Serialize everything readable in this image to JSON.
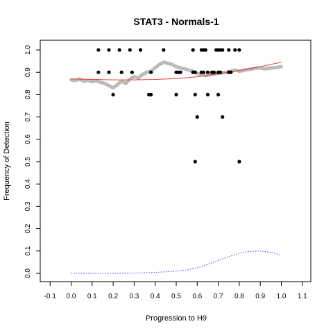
{
  "chart_data": {
    "type": "scatter",
    "title": "STAT3 - Normals-1",
    "xlabel": "Progression to H9",
    "ylabel": "Frequency of Detection",
    "xlim": [
      -0.1,
      1.1
    ],
    "ylim": [
      0,
      1.0
    ],
    "grid": false,
    "legend": "none",
    "x_ticks": [
      "-0.1",
      "0.0",
      "0.1",
      "0.2",
      "0.3",
      "0.4",
      "0.5",
      "0.6",
      "0.7",
      "0.8",
      "0.9",
      "1.0",
      "1.1"
    ],
    "y_ticks": [
      "0.0",
      "0.1",
      "0.2",
      "0.3",
      "0.4",
      "0.5",
      "0.6",
      "0.7",
      "0.8",
      "0.9",
      "1.0"
    ],
    "series": [
      {
        "kind": "points",
        "color": "#000000",
        "points": [
          [
            0.13,
            1.0
          ],
          [
            0.18,
            1.0
          ],
          [
            0.23,
            1.0
          ],
          [
            0.28,
            1.0
          ],
          [
            0.33,
            1.0
          ],
          [
            0.44,
            1.0
          ],
          [
            0.58,
            1.0
          ],
          [
            0.62,
            1.0
          ],
          [
            0.63,
            1.0
          ],
          [
            0.64,
            1.0
          ],
          [
            0.69,
            1.0
          ],
          [
            0.7,
            1.0
          ],
          [
            0.71,
            1.0
          ],
          [
            0.72,
            1.0
          ],
          [
            0.75,
            1.0
          ],
          [
            0.78,
            1.0
          ],
          [
            0.8,
            1.0
          ],
          [
            0.13,
            0.9
          ],
          [
            0.18,
            0.9
          ],
          [
            0.24,
            0.9
          ],
          [
            0.29,
            0.9
          ],
          [
            0.38,
            0.9
          ],
          [
            0.5,
            0.9
          ],
          [
            0.51,
            0.9
          ],
          [
            0.52,
            0.9
          ],
          [
            0.58,
            0.9
          ],
          [
            0.59,
            0.9
          ],
          [
            0.62,
            0.9
          ],
          [
            0.63,
            0.9
          ],
          [
            0.65,
            0.9
          ],
          [
            0.67,
            0.9
          ],
          [
            0.68,
            0.9
          ],
          [
            0.7,
            0.9
          ],
          [
            0.71,
            0.9
          ],
          [
            0.75,
            0.9
          ],
          [
            0.76,
            0.9
          ],
          [
            0.2,
            0.8
          ],
          [
            0.37,
            0.8
          ],
          [
            0.38,
            0.8
          ],
          [
            0.5,
            0.8
          ],
          [
            0.59,
            0.8
          ],
          [
            0.65,
            0.8
          ],
          [
            0.7,
            0.8
          ],
          [
            0.6,
            0.7
          ],
          [
            0.72,
            0.7
          ],
          [
            0.59,
            0.5
          ],
          [
            0.8,
            0.5
          ]
        ]
      },
      {
        "kind": "smooth",
        "color": "#bbbbbb",
        "points": [
          [
            0.0,
            0.866
          ],
          [
            0.02,
            0.863
          ],
          [
            0.04,
            0.87
          ],
          [
            0.06,
            0.86
          ],
          [
            0.08,
            0.864
          ],
          [
            0.1,
            0.858
          ],
          [
            0.12,
            0.862
          ],
          [
            0.14,
            0.855
          ],
          [
            0.16,
            0.85
          ],
          [
            0.18,
            0.84
          ],
          [
            0.2,
            0.83
          ],
          [
            0.22,
            0.845
          ],
          [
            0.24,
            0.86
          ],
          [
            0.26,
            0.85
          ],
          [
            0.28,
            0.87
          ],
          [
            0.3,
            0.88
          ],
          [
            0.32,
            0.875
          ],
          [
            0.34,
            0.89
          ],
          [
            0.36,
            0.9
          ],
          [
            0.38,
            0.905
          ],
          [
            0.4,
            0.92
          ],
          [
            0.42,
            0.935
          ],
          [
            0.44,
            0.945
          ],
          [
            0.46,
            0.94
          ],
          [
            0.48,
            0.935
          ],
          [
            0.5,
            0.925
          ],
          [
            0.52,
            0.92
          ],
          [
            0.54,
            0.915
          ],
          [
            0.56,
            0.91
          ],
          [
            0.58,
            0.905
          ],
          [
            0.6,
            0.895
          ],
          [
            0.62,
            0.89
          ],
          [
            0.64,
            0.885
          ],
          [
            0.66,
            0.89
          ],
          [
            0.68,
            0.892
          ],
          [
            0.7,
            0.895
          ],
          [
            0.72,
            0.898
          ],
          [
            0.74,
            0.9
          ],
          [
            0.76,
            0.905
          ],
          [
            0.78,
            0.91
          ],
          [
            0.8,
            0.905
          ],
          [
            0.82,
            0.908
          ],
          [
            0.84,
            0.912
          ],
          [
            0.86,
            0.915
          ],
          [
            0.88,
            0.918
          ],
          [
            0.9,
            0.92
          ],
          [
            0.92,
            0.915
          ],
          [
            0.94,
            0.918
          ],
          [
            0.96,
            0.92
          ],
          [
            0.98,
            0.922
          ],
          [
            1.0,
            0.925
          ]
        ]
      },
      {
        "kind": "line",
        "color": "#e03c31",
        "points": [
          [
            0.0,
            0.87
          ],
          [
            0.1,
            0.868
          ],
          [
            0.2,
            0.866
          ],
          [
            0.3,
            0.866
          ],
          [
            0.4,
            0.868
          ],
          [
            0.5,
            0.872
          ],
          [
            0.6,
            0.88
          ],
          [
            0.7,
            0.893
          ],
          [
            0.8,
            0.908
          ],
          [
            0.9,
            0.925
          ],
          [
            1.0,
            0.945
          ]
        ]
      },
      {
        "kind": "dotted",
        "color": "#3a3aff",
        "points": [
          [
            0.0,
            0.0
          ],
          [
            0.1,
            0.0
          ],
          [
            0.2,
            0.0
          ],
          [
            0.3,
            0.001
          ],
          [
            0.4,
            0.004
          ],
          [
            0.5,
            0.01
          ],
          [
            0.55,
            0.015
          ],
          [
            0.6,
            0.025
          ],
          [
            0.65,
            0.04
          ],
          [
            0.7,
            0.058
          ],
          [
            0.75,
            0.075
          ],
          [
            0.8,
            0.09
          ],
          [
            0.85,
            0.099
          ],
          [
            0.9,
            0.1
          ],
          [
            0.95,
            0.094
          ],
          [
            1.0,
            0.082
          ]
        ]
      }
    ]
  }
}
